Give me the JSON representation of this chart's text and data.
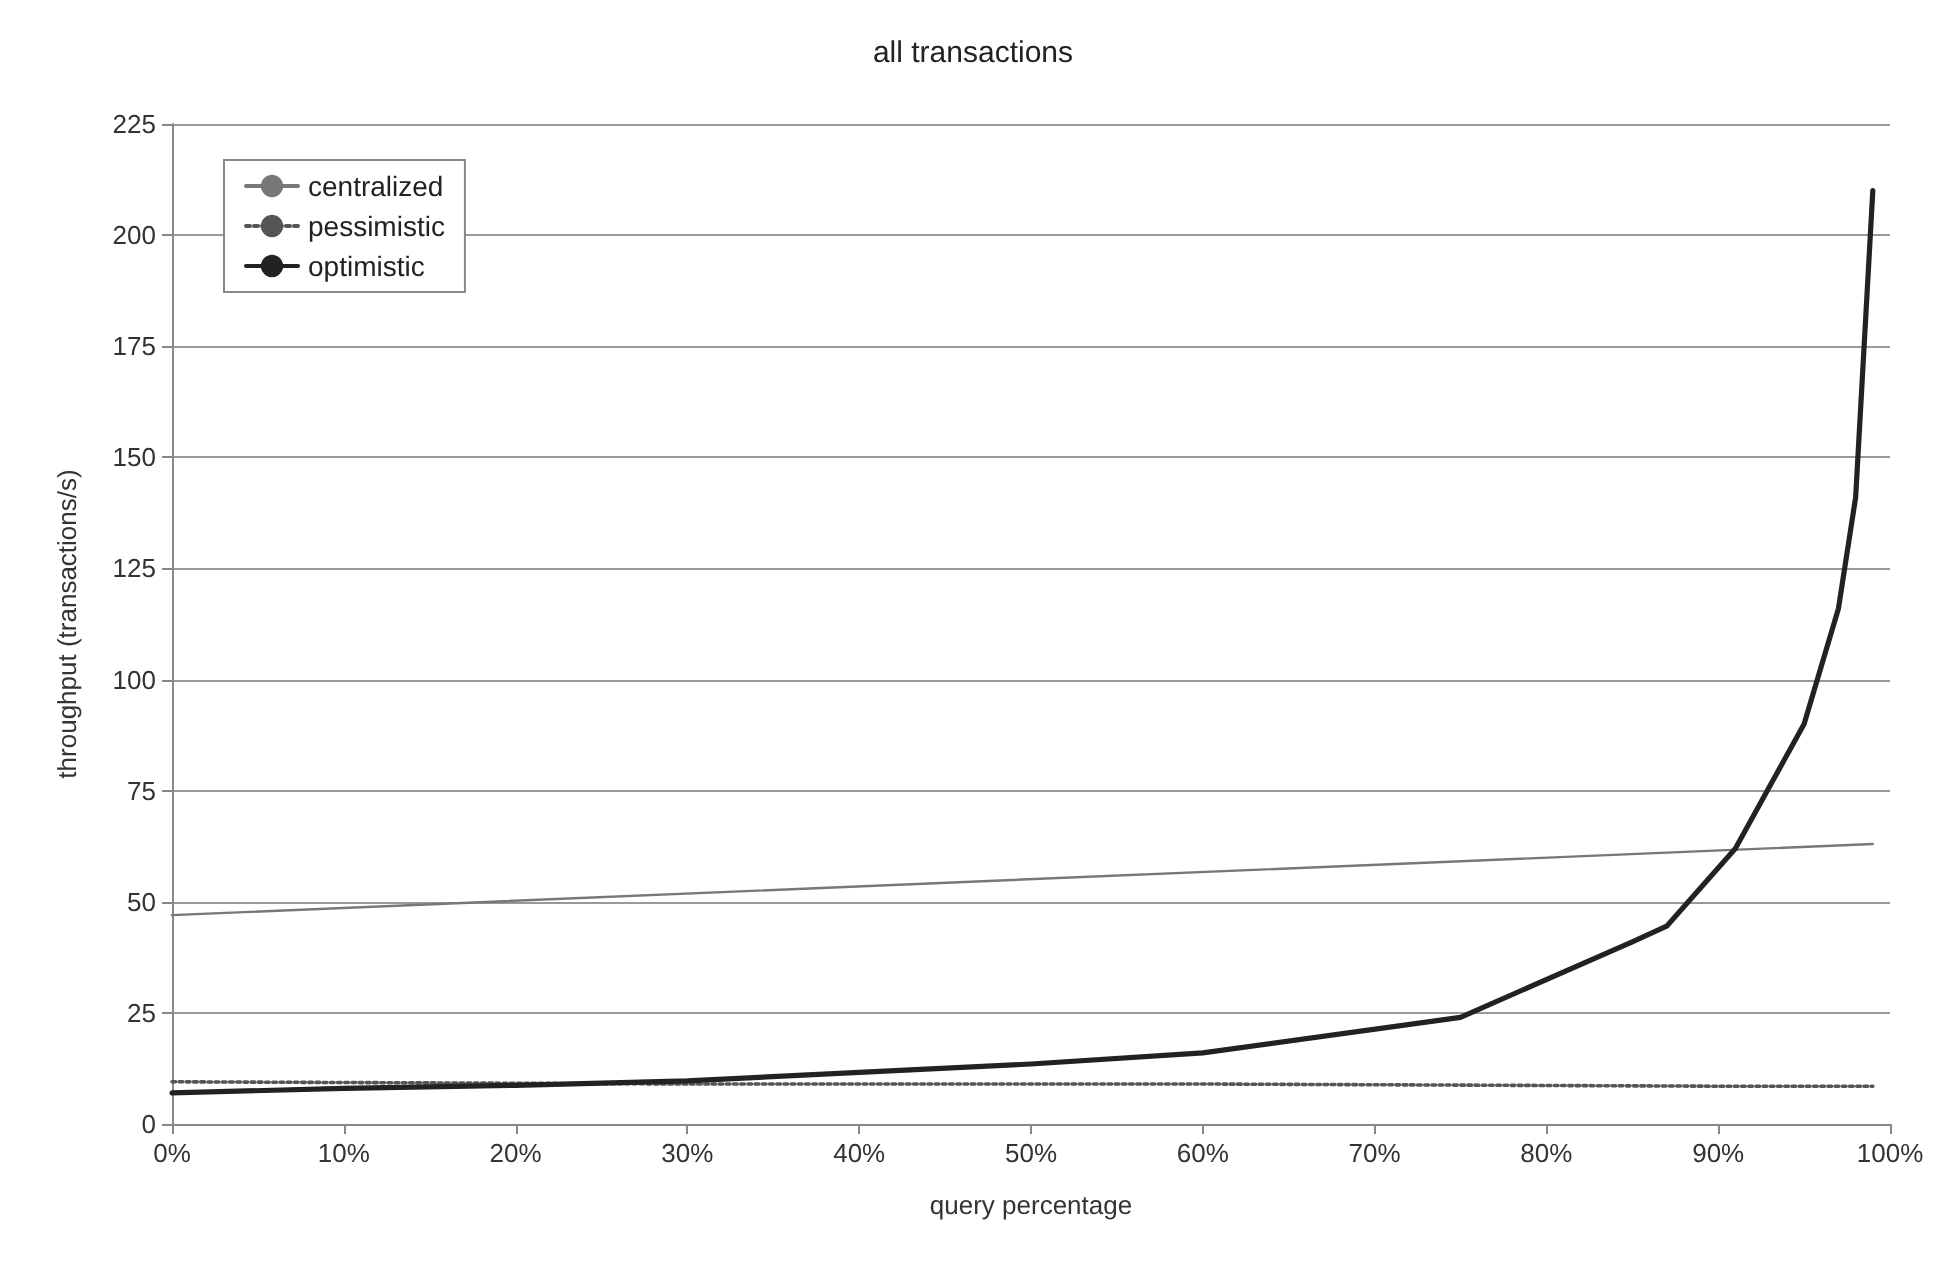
{
  "chart_data": {
    "type": "line",
    "title": "all transactions",
    "xlabel": "query percentage",
    "ylabel": "throughput (transactions/s)",
    "xlim": [
      0,
      100
    ],
    "xticks": [
      {
        "value": 0,
        "label": "0%"
      },
      {
        "value": 10,
        "label": "10%"
      },
      {
        "value": 20,
        "label": "20%"
      },
      {
        "value": 30,
        "label": "30%"
      },
      {
        "value": 40,
        "label": "40%"
      },
      {
        "value": 50,
        "label": "50%"
      },
      {
        "value": 60,
        "label": "60%"
      },
      {
        "value": 70,
        "label": "70%"
      },
      {
        "value": 80,
        "label": "80%"
      },
      {
        "value": 90,
        "label": "90%"
      },
      {
        "value": 100,
        "label": "100%"
      }
    ],
    "ylim": [
      0,
      225
    ],
    "yticks": [
      0,
      25,
      50,
      75,
      100,
      125,
      150,
      175,
      200,
      225
    ],
    "grid": "y",
    "legend": "top left",
    "marker": "none",
    "series": [
      {
        "name": "centralized",
        "color": "#777777",
        "line_style": "solid",
        "x": [
          0,
          99
        ],
        "values": [
          47,
          63
        ]
      },
      {
        "name": "pessimistic",
        "color": "#555555",
        "line_style": "dotted",
        "x": [
          0,
          30,
          60,
          90,
          99
        ],
        "values": [
          9.5,
          9,
          9,
          8.5,
          8.5
        ]
      },
      {
        "name": "optimistic",
        "color": "#222222",
        "line_style": "solid",
        "x": [
          0,
          10,
          20,
          30,
          40,
          50,
          60,
          75,
          85,
          87,
          91,
          95,
          97,
          98,
          99
        ],
        "values": [
          7,
          8,
          8.7,
          9.7,
          11.6,
          13.5,
          16,
          24,
          41,
          44.5,
          62,
          90,
          116,
          141,
          210
        ]
      }
    ]
  }
}
